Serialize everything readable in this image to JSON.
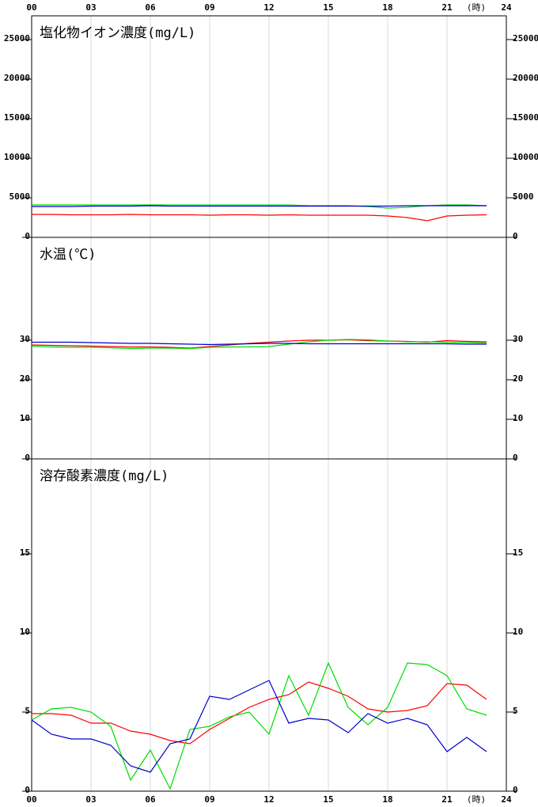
{
  "x_axis": {
    "xlim": [
      0,
      24
    ],
    "xticks": [
      {
        "value": 0,
        "label": "00"
      },
      {
        "value": 3,
        "label": "03"
      },
      {
        "value": 6,
        "label": "06"
      },
      {
        "value": 9,
        "label": "09"
      },
      12,
      15,
      18,
      21,
      24
    ],
    "unit": "(時)"
  },
  "chart_data": [
    {
      "type": "line",
      "title": "塩化物イオン濃度(mg/L)",
      "grid": true,
      "x": [
        0,
        1,
        2,
        3,
        4,
        5,
        6,
        7,
        8,
        9,
        10,
        11,
        12,
        13,
        14,
        15,
        16,
        17,
        18,
        19,
        20,
        21,
        22,
        23
      ],
      "ylim": [
        0,
        28000
      ],
      "yticks": [
        0,
        5000,
        10000,
        15000,
        20000,
        25000
      ],
      "series": [
        {
          "color": "#ff0000",
          "values": [
            2900,
            2900,
            2850,
            2850,
            2850,
            2900,
            2850,
            2850,
            2850,
            2800,
            2850,
            2850,
            2800,
            2850,
            2800,
            2800,
            2800,
            2800,
            2700,
            2500,
            2100,
            2700,
            2800,
            2850
          ]
        },
        {
          "color": "#00dd00",
          "values": [
            4100,
            4100,
            4100,
            4100,
            4100,
            4100,
            4100,
            4100,
            4100,
            4100,
            4100,
            4100,
            4100,
            4100,
            4000,
            4000,
            4000,
            3900,
            3700,
            3800,
            4000,
            4100,
            4100,
            4000
          ]
        },
        {
          "color": "#0000cc",
          "values": [
            3900,
            3900,
            3900,
            3950,
            3950,
            3950,
            4000,
            3950,
            3950,
            3950,
            3950,
            3950,
            3950,
            3950,
            3950,
            3950,
            3950,
            3950,
            3950,
            4000,
            4000,
            4000,
            4000,
            4000
          ]
        }
      ]
    },
    {
      "type": "line",
      "title": "水温(℃)",
      "grid": true,
      "x": [
        0,
        1,
        2,
        3,
        4,
        5,
        6,
        7,
        8,
        9,
        10,
        11,
        12,
        13,
        14,
        15,
        16,
        17,
        18,
        19,
        20,
        21,
        22,
        23
      ],
      "ylim": [
        0,
        56
      ],
      "yticks": [
        0,
        10,
        20,
        30
      ],
      "series": [
        {
          "color": "#ff0000",
          "values": [
            28.8,
            28.7,
            28.6,
            28.5,
            28.4,
            28.3,
            28.3,
            28.2,
            28.0,
            28.4,
            28.8,
            29.2,
            29.5,
            29.8,
            30.0,
            30.0,
            30.1,
            29.9,
            29.8,
            29.7,
            29.5,
            29.9,
            29.7,
            29.6
          ]
        },
        {
          "color": "#00dd00",
          "values": [
            28.5,
            28.3,
            28.2,
            28.2,
            28.1,
            27.9,
            28.0,
            28.0,
            27.9,
            28.2,
            28.3,
            28.3,
            28.4,
            29.0,
            29.6,
            30.0,
            30.2,
            30.1,
            29.8,
            29.6,
            29.6,
            29.5,
            29.4,
            29.3
          ]
        },
        {
          "color": "#0000cc",
          "values": [
            29.5,
            29.5,
            29.5,
            29.4,
            29.3,
            29.2,
            29.2,
            29.1,
            29.0,
            28.9,
            29.0,
            29.1,
            29.2,
            29.2,
            29.1,
            29.1,
            29.1,
            29.1,
            29.1,
            29.1,
            29.1,
            29.1,
            29.0,
            29.0
          ]
        }
      ]
    },
    {
      "type": "line",
      "title": "溶存酸素濃度(mg/L)",
      "grid": true,
      "x": [
        0,
        1,
        2,
        3,
        4,
        5,
        6,
        7,
        8,
        9,
        10,
        11,
        12,
        13,
        14,
        15,
        16,
        17,
        18,
        19,
        20,
        21,
        22,
        23
      ],
      "ylim": [
        0,
        21
      ],
      "yticks": [
        0,
        5,
        10,
        15
      ],
      "series": [
        {
          "color": "#ff0000",
          "values": [
            4.9,
            4.9,
            4.8,
            4.3,
            4.3,
            3.8,
            3.6,
            3.2,
            3.0,
            3.9,
            4.6,
            5.3,
            5.8,
            6.1,
            6.9,
            6.5,
            6.0,
            5.2,
            5.0,
            5.1,
            5.4,
            6.8,
            6.7,
            5.8
          ]
        },
        {
          "color": "#00dd00",
          "values": [
            4.5,
            5.2,
            5.3,
            5.0,
            4.1,
            0.7,
            2.6,
            0.15,
            3.9,
            4.1,
            4.7,
            5.0,
            3.6,
            7.3,
            4.8,
            8.1,
            5.3,
            4.2,
            5.3,
            8.1,
            8.0,
            7.3,
            5.2,
            4.8
          ]
        },
        {
          "color": "#0000cc",
          "values": [
            4.5,
            3.6,
            3.3,
            3.3,
            2.9,
            1.6,
            1.2,
            3.0,
            3.3,
            6.0,
            5.8,
            6.4,
            7.0,
            4.3,
            4.6,
            4.5,
            3.7,
            4.9,
            4.3,
            4.6,
            4.2,
            2.5,
            3.4,
            2.5
          ]
        }
      ]
    }
  ]
}
